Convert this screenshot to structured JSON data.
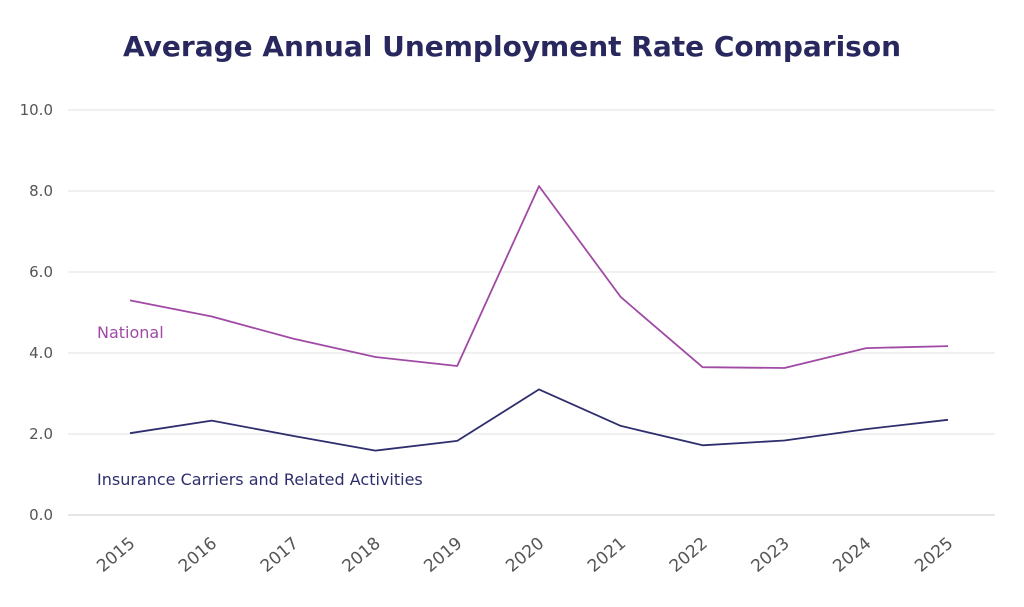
{
  "chart_data": {
    "type": "line",
    "title": "Average Annual Unemployment Rate Comparison",
    "xlabel": "",
    "ylabel": "",
    "ylim": [
      0,
      10
    ],
    "yticks": [
      "0.0",
      "2.0",
      "4.0",
      "6.0",
      "8.0",
      "10.0"
    ],
    "categories": [
      "2015",
      "2016",
      "2017",
      "2018",
      "2019",
      "2020",
      "2021",
      "2022",
      "2023",
      "2024",
      "2025"
    ],
    "series": [
      {
        "name": "National",
        "color": "#a04aa5",
        "values": [
          5.3,
          4.9,
          4.35,
          3.9,
          3.68,
          8.12,
          5.38,
          3.65,
          3.63,
          4.12,
          4.17
        ]
      },
      {
        "name": "Insurance Carriers and Related Activities",
        "color": "#2e2e6e",
        "values": [
          2.02,
          2.33,
          1.95,
          1.59,
          1.83,
          3.1,
          2.2,
          1.72,
          1.84,
          2.12,
          2.35
        ]
      }
    ],
    "grid": true,
    "legend": "inline"
  }
}
